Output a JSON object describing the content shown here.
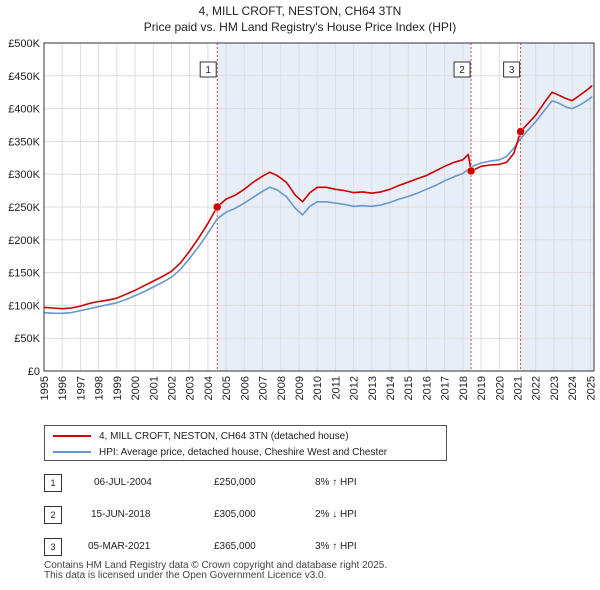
{
  "title": [
    "4, MILL CROFT, NESTON, CH64 3TN",
    "Price paid vs. HM Land Registry's House Price Index (HPI)"
  ],
  "colors": {
    "property": "#cc0000",
    "hpi": "#6699cc",
    "shade": "#e8eef8",
    "grid": "#dddddd"
  },
  "chart_data": {
    "type": "line",
    "title": "4, MILL CROFT, NESTON, CH64 3TN — Price paid vs. HM Land Registry's House Price Index (HPI)",
    "xlim": [
      1995,
      2025.2
    ],
    "ylim": [
      0,
      500000
    ],
    "x_ticks": [
      1995,
      1996,
      1997,
      1998,
      1999,
      2000,
      2001,
      2002,
      2003,
      2004,
      2005,
      2006,
      2007,
      2008,
      2009,
      2010,
      2011,
      2012,
      2013,
      2014,
      2015,
      2016,
      2017,
      2018,
      2019,
      2020,
      2021,
      2022,
      2023,
      2024,
      2025
    ],
    "y_ticks": [
      0,
      50000,
      100000,
      150000,
      200000,
      250000,
      300000,
      350000,
      400000,
      450000,
      500000
    ],
    "y_tick_labels": [
      "£0",
      "£50K",
      "£100K",
      "£150K",
      "£200K",
      "£250K",
      "£300K",
      "£350K",
      "£400K",
      "£450K",
      "£500K"
    ],
    "series": [
      {
        "name": "4, MILL CROFT, NESTON, CH64 3TN (detached house)",
        "points": [
          [
            1995.0,
            97000
          ],
          [
            1995.5,
            96000
          ],
          [
            1996.0,
            95000
          ],
          [
            1996.5,
            96000
          ],
          [
            1997.0,
            99000
          ],
          [
            1997.5,
            103000
          ],
          [
            1998.0,
            106000
          ],
          [
            1998.5,
            108000
          ],
          [
            1999.0,
            111000
          ],
          [
            1999.5,
            117000
          ],
          [
            2000.0,
            123000
          ],
          [
            2000.5,
            130000
          ],
          [
            2001.0,
            137000
          ],
          [
            2001.5,
            144000
          ],
          [
            2002.0,
            152000
          ],
          [
            2002.5,
            165000
          ],
          [
            2003.0,
            183000
          ],
          [
            2003.5,
            203000
          ],
          [
            2004.0,
            225000
          ],
          [
            2004.51,
            250000
          ],
          [
            2005.0,
            262000
          ],
          [
            2005.5,
            268000
          ],
          [
            2006.0,
            277000
          ],
          [
            2006.5,
            288000
          ],
          [
            2007.0,
            297000
          ],
          [
            2007.4,
            303000
          ],
          [
            2007.8,
            298000
          ],
          [
            2008.3,
            288000
          ],
          [
            2008.8,
            268000
          ],
          [
            2009.2,
            258000
          ],
          [
            2009.6,
            272000
          ],
          [
            2010.0,
            280000
          ],
          [
            2010.5,
            280000
          ],
          [
            2011.0,
            277000
          ],
          [
            2011.5,
            275000
          ],
          [
            2012.0,
            272000
          ],
          [
            2012.5,
            273000
          ],
          [
            2013.0,
            271000
          ],
          [
            2013.5,
            273000
          ],
          [
            2014.0,
            277000
          ],
          [
            2014.5,
            283000
          ],
          [
            2015.0,
            288000
          ],
          [
            2015.5,
            293000
          ],
          [
            2016.0,
            298000
          ],
          [
            2016.5,
            305000
          ],
          [
            2017.0,
            312000
          ],
          [
            2017.5,
            318000
          ],
          [
            2018.0,
            322000
          ],
          [
            2018.3,
            330000
          ],
          [
            2018.45,
            305000
          ],
          [
            2018.7,
            308000
          ],
          [
            2019.0,
            312000
          ],
          [
            2019.5,
            314000
          ],
          [
            2020.0,
            315000
          ],
          [
            2020.4,
            318000
          ],
          [
            2020.8,
            332000
          ],
          [
            2021.17,
            365000
          ],
          [
            2021.5,
            375000
          ],
          [
            2022.0,
            390000
          ],
          [
            2022.5,
            410000
          ],
          [
            2022.9,
            425000
          ],
          [
            2023.3,
            420000
          ],
          [
            2023.7,
            415000
          ],
          [
            2024.0,
            412000
          ],
          [
            2024.4,
            420000
          ],
          [
            2024.8,
            428000
          ],
          [
            2025.1,
            435000
          ]
        ]
      },
      {
        "name": "HPI: Average price, detached house, Cheshire West and Chester",
        "points": [
          [
            1995.0,
            89000
          ],
          [
            1995.5,
            88000
          ],
          [
            1996.0,
            88000
          ],
          [
            1996.5,
            89000
          ],
          [
            1997.0,
            92000
          ],
          [
            1997.5,
            95000
          ],
          [
            1998.0,
            98000
          ],
          [
            1998.5,
            101000
          ],
          [
            1999.0,
            104000
          ],
          [
            1999.5,
            109000
          ],
          [
            2000.0,
            115000
          ],
          [
            2000.5,
            121000
          ],
          [
            2001.0,
            128000
          ],
          [
            2001.5,
            135000
          ],
          [
            2002.0,
            143000
          ],
          [
            2002.5,
            155000
          ],
          [
            2003.0,
            172000
          ],
          [
            2003.5,
            190000
          ],
          [
            2004.0,
            210000
          ],
          [
            2004.51,
            232000
          ],
          [
            2005.0,
            242000
          ],
          [
            2005.5,
            248000
          ],
          [
            2006.0,
            256000
          ],
          [
            2006.5,
            265000
          ],
          [
            2007.0,
            274000
          ],
          [
            2007.4,
            280000
          ],
          [
            2007.8,
            276000
          ],
          [
            2008.3,
            266000
          ],
          [
            2008.8,
            248000
          ],
          [
            2009.2,
            238000
          ],
          [
            2009.6,
            251000
          ],
          [
            2010.0,
            258000
          ],
          [
            2010.5,
            258000
          ],
          [
            2011.0,
            256000
          ],
          [
            2011.5,
            254000
          ],
          [
            2012.0,
            251000
          ],
          [
            2012.5,
            252000
          ],
          [
            2013.0,
            251000
          ],
          [
            2013.5,
            253000
          ],
          [
            2014.0,
            257000
          ],
          [
            2014.5,
            262000
          ],
          [
            2015.0,
            266000
          ],
          [
            2015.5,
            271000
          ],
          [
            2016.0,
            277000
          ],
          [
            2016.5,
            283000
          ],
          [
            2017.0,
            290000
          ],
          [
            2017.5,
            296000
          ],
          [
            2018.0,
            301000
          ],
          [
            2018.45,
            311000
          ],
          [
            2018.7,
            314000
          ],
          [
            2019.0,
            317000
          ],
          [
            2019.5,
            320000
          ],
          [
            2020.0,
            322000
          ],
          [
            2020.4,
            327000
          ],
          [
            2020.8,
            340000
          ],
          [
            2021.17,
            354000
          ],
          [
            2021.5,
            365000
          ],
          [
            2022.0,
            380000
          ],
          [
            2022.5,
            398000
          ],
          [
            2022.9,
            412000
          ],
          [
            2023.3,
            408000
          ],
          [
            2023.7,
            402000
          ],
          [
            2024.0,
            400000
          ],
          [
            2024.4,
            405000
          ],
          [
            2024.8,
            412000
          ],
          [
            2025.1,
            418000
          ]
        ]
      }
    ],
    "sales": [
      {
        "id": "1",
        "x": 2004.51,
        "price": 250000
      },
      {
        "id": "2",
        "x": 2018.45,
        "price": 305000
      },
      {
        "id": "3",
        "x": 2021.17,
        "price": 365000
      }
    ],
    "shaded_ranges": [
      [
        2004.51,
        2018.45
      ],
      [
        2021.17,
        2025.2
      ]
    ]
  },
  "legend": [
    {
      "label": "4, MILL CROFT, NESTON, CH64 3TN (detached house)"
    },
    {
      "label": "HPI: Average price, detached house, Cheshire West and Chester"
    }
  ],
  "sales_table": [
    {
      "num": "1",
      "date": "06-JUL-2004",
      "price": "£250,000",
      "hpi": "8% ↑ HPI"
    },
    {
      "num": "2",
      "date": "15-JUN-2018",
      "price": "£305,000",
      "hpi": "2% ↓ HPI"
    },
    {
      "num": "3",
      "date": "05-MAR-2021",
      "price": "£365,000",
      "hpi": "3% ↑ HPI"
    }
  ],
  "footer": [
    "Contains HM Land Registry data © Crown copyright and database right 2025.",
    "This data is licensed under the Open Government Licence v3.0."
  ]
}
